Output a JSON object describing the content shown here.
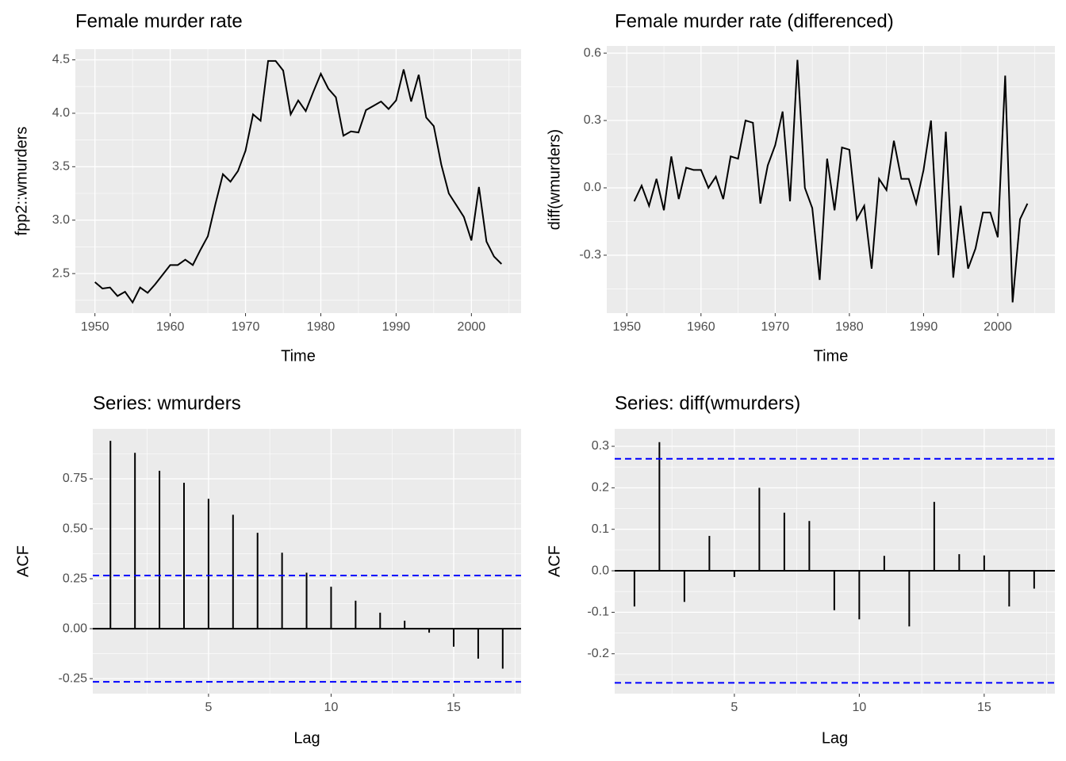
{
  "chart_data": [
    {
      "type": "line",
      "title": "Female murder rate",
      "x_label": "Time",
      "y_label": "fpp2::wmurders",
      "color": "#000000",
      "grid": true,
      "x": [
        1950,
        1951,
        1952,
        1953,
        1954,
        1955,
        1956,
        1957,
        1958,
        1959,
        1960,
        1961,
        1962,
        1963,
        1964,
        1965,
        1966,
        1967,
        1968,
        1969,
        1970,
        1971,
        1972,
        1973,
        1974,
        1975,
        1976,
        1977,
        1978,
        1979,
        1980,
        1981,
        1982,
        1983,
        1984,
        1985,
        1986,
        1987,
        1988,
        1989,
        1990,
        1991,
        1992,
        1993,
        1994,
        1995,
        1996,
        1997,
        1998,
        1999,
        2000,
        2001,
        2002,
        2003,
        2004
      ],
      "values": [
        2.42,
        2.36,
        2.37,
        2.29,
        2.33,
        2.23,
        2.37,
        2.32,
        2.4,
        2.49,
        2.58,
        2.58,
        2.63,
        2.58,
        2.72,
        2.85,
        3.15,
        3.43,
        3.36,
        3.46,
        3.65,
        3.99,
        3.93,
        4.49,
        4.49,
        4.4,
        3.99,
        4.12,
        4.02,
        4.2,
        4.37,
        4.23,
        4.15,
        3.79,
        3.83,
        3.82,
        4.03,
        4.07,
        4.11,
        4.04,
        4.12,
        4.41,
        4.11,
        4.36,
        3.96,
        3.88,
        3.52,
        3.25,
        3.14,
        3.03,
        2.81,
        3.31,
        2.8,
        2.66,
        2.59
      ],
      "xlim": [
        1947.4,
        2006.6
      ],
      "xticks": [
        1950,
        1960,
        1970,
        1980,
        1990,
        2000
      ],
      "ylim": [
        2.13,
        4.6
      ],
      "yticks": [
        2.5,
        {
          "value": 3,
          "label": "3.0"
        },
        3.5,
        {
          "value": 4,
          "label": "4.0"
        },
        4.5
      ]
    },
    {
      "type": "line",
      "title": "Female murder rate (differenced)",
      "x_label": "Time",
      "y_label": "diff(wmurders)",
      "color": "#000000",
      "grid": true,
      "x": [
        1951,
        1952,
        1953,
        1954,
        1955,
        1956,
        1957,
        1958,
        1959,
        1960,
        1961,
        1962,
        1963,
        1964,
        1965,
        1966,
        1967,
        1968,
        1969,
        1970,
        1971,
        1972,
        1973,
        1974,
        1975,
        1976,
        1977,
        1978,
        1979,
        1980,
        1981,
        1982,
        1983,
        1984,
        1985,
        1986,
        1987,
        1988,
        1989,
        1990,
        1991,
        1992,
        1993,
        1994,
        1995,
        1996,
        1997,
        1998,
        1999,
        2000,
        2001,
        2002,
        2003,
        2004
      ],
      "values": [
        -0.06,
        0.01,
        -0.08,
        0.04,
        -0.1,
        0.14,
        -0.05,
        0.09,
        0.08,
        0.08,
        0.0,
        0.05,
        -0.05,
        0.14,
        0.13,
        0.3,
        0.29,
        -0.07,
        0.1,
        0.19,
        0.34,
        -0.06,
        0.57,
        0.0,
        -0.09,
        -0.41,
        0.13,
        -0.1,
        0.18,
        0.17,
        -0.14,
        -0.08,
        -0.36,
        0.04,
        -0.01,
        0.21,
        0.04,
        0.04,
        -0.07,
        0.08,
        0.3,
        -0.3,
        0.25,
        -0.4,
        -0.08,
        -0.36,
        -0.27,
        -0.11,
        -0.11,
        -0.22,
        0.5,
        -0.51,
        -0.14,
        -0.07
      ],
      "xlim": [
        1947.3,
        2007.7
      ],
      "xticks": [
        1950,
        1960,
        1970,
        1980,
        1990,
        2000
      ],
      "ylim": [
        -0.558,
        0.632
      ],
      "yticks": [
        -0.3,
        {
          "value": 0,
          "label": "0.0"
        },
        0.3,
        0.6
      ]
    },
    {
      "type": "acf",
      "title": "Series: wmurders",
      "x_label": "Lag",
      "y_label": "ACF",
      "color": "#000000",
      "ci_color": "#0000ff",
      "grid": true,
      "x": [
        1,
        2,
        3,
        4,
        5,
        6,
        7,
        8,
        9,
        10,
        11,
        12,
        13,
        14,
        15,
        16,
        17
      ],
      "values": [
        0.94,
        0.88,
        0.79,
        0.73,
        0.65,
        0.57,
        0.48,
        0.38,
        0.28,
        0.21,
        0.14,
        0.08,
        0.04,
        -0.02,
        -0.09,
        -0.15,
        -0.2
      ],
      "ci": [
        0.266,
        -0.266
      ],
      "xlim": [
        0.28,
        17.75
      ],
      "xticks": [
        5,
        10,
        15
      ],
      "ylim": [
        -0.325,
        1.0
      ],
      "yticks": [
        -0.25,
        {
          "value": 0,
          "label": "0.00"
        },
        0.25,
        {
          "value": 0.5,
          "label": "0.50"
        },
        0.75
      ]
    },
    {
      "type": "acf",
      "title": "Series: diff(wmurders)",
      "x_label": "Lag",
      "y_label": "ACF",
      "color": "#000000",
      "ci_color": "#0000ff",
      "grid": true,
      "x": [
        1,
        2,
        3,
        4,
        5,
        6,
        7,
        8,
        9,
        10,
        11,
        12,
        13,
        14,
        15,
        16,
        17
      ],
      "values": [
        -0.086,
        0.31,
        -0.075,
        0.084,
        -0.015,
        0.2,
        0.14,
        0.12,
        -0.095,
        -0.117,
        0.036,
        -0.134,
        0.166,
        0.04,
        0.037,
        -0.086,
        -0.043
      ],
      "ci": [
        0.27,
        -0.27
      ],
      "xlim": [
        0.21,
        17.83
      ],
      "xticks": [
        5,
        10,
        15
      ],
      "ylim": [
        -0.296,
        0.342
      ],
      "yticks": [
        -0.2,
        -0.1,
        {
          "value": 0,
          "label": "0.0"
        },
        0.1,
        0.2,
        0.3
      ]
    }
  ]
}
